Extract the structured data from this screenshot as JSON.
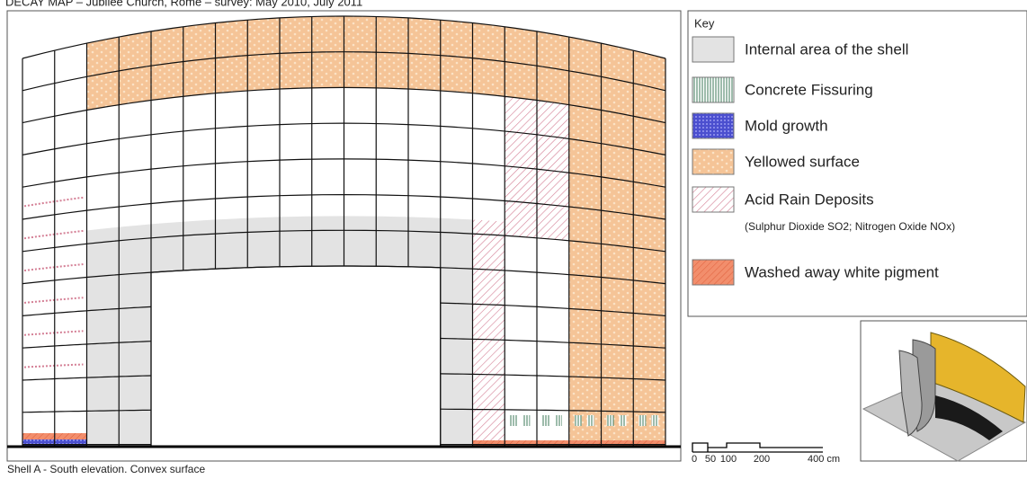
{
  "header": {
    "title": "DECAY MAP – Jubilee Church, Rome – survey: May 2010, July 2011"
  },
  "key": {
    "title": "Key",
    "items": [
      {
        "label": "Internal area of the shell"
      },
      {
        "label": "Concrete Fissuring"
      },
      {
        "label": "Mold growth"
      },
      {
        "label": "Yellowed surface"
      },
      {
        "label": "Acid Rain Deposits",
        "note": "(Sulphur Dioxide SO2; Nitrogen Oxide NOx)"
      },
      {
        "label": "Washed away white pigment"
      }
    ]
  },
  "scale": {
    "labels": [
      "0",
      "50",
      "100",
      "200",
      "400 cm"
    ]
  },
  "caption": "Shell A - South elevation. Convex surface"
}
